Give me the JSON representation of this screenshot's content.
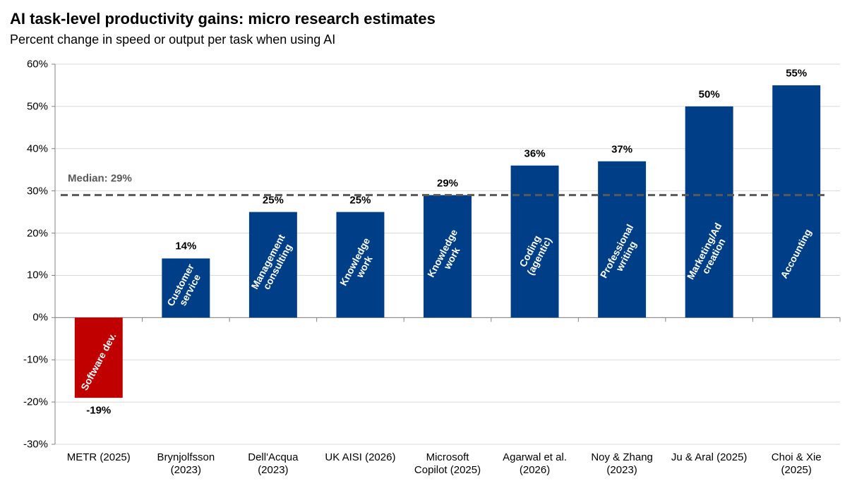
{
  "chart_data": {
    "type": "bar",
    "title": "AI task-level productivity gains: micro research estimates",
    "subtitle": "Percent change in speed or output per task when using AI",
    "categories": [
      "METR (2025)",
      "Brynjolfsson\n(2023)",
      "Dell'Acqua\n(2023)",
      "UK AISI (2026)",
      "Microsoft\nCopilot (2025)",
      "Agarwal et al.\n(2026)",
      "Noy & Zhang\n(2023)",
      "Ju & Aral (2025)",
      "Choi & Xie\n(2025)"
    ],
    "values": [
      -19,
      14,
      25,
      25,
      29,
      36,
      37,
      50,
      55
    ],
    "value_labels": [
      "-19%",
      "14%",
      "25%",
      "25%",
      "29%",
      "36%",
      "37%",
      "50%",
      "55%"
    ],
    "bar_labels": [
      "Software dev.",
      "Customer\nservice",
      "Management\nconsulting",
      "Knowledge\nwork",
      "Knowledge\nwork",
      "Coding\n(agentic)",
      "Professional\nwriting",
      "Marketing/Ad\ncreation",
      "Accounting"
    ],
    "colors": [
      "#c00000",
      "#003f87",
      "#003f87",
      "#003f87",
      "#003f87",
      "#003f87",
      "#003f87",
      "#003f87",
      "#003f87"
    ],
    "median": {
      "value": 29,
      "label": "Median: 29%"
    },
    "ylim": [
      -30,
      60
    ],
    "yticks": [
      {
        "value": -30,
        "label": "-30%"
      },
      {
        "value": -20,
        "label": "-20%"
      },
      {
        "value": -10,
        "label": "-10%"
      },
      {
        "value": 0,
        "label": "0%"
      },
      {
        "value": 10,
        "label": "10%"
      },
      {
        "value": 20,
        "label": "20%"
      },
      {
        "value": 30,
        "label": "30%"
      },
      {
        "value": 40,
        "label": "40%"
      },
      {
        "value": 50,
        "label": "50%"
      },
      {
        "value": 60,
        "label": "60%"
      }
    ],
    "grid": true
  }
}
